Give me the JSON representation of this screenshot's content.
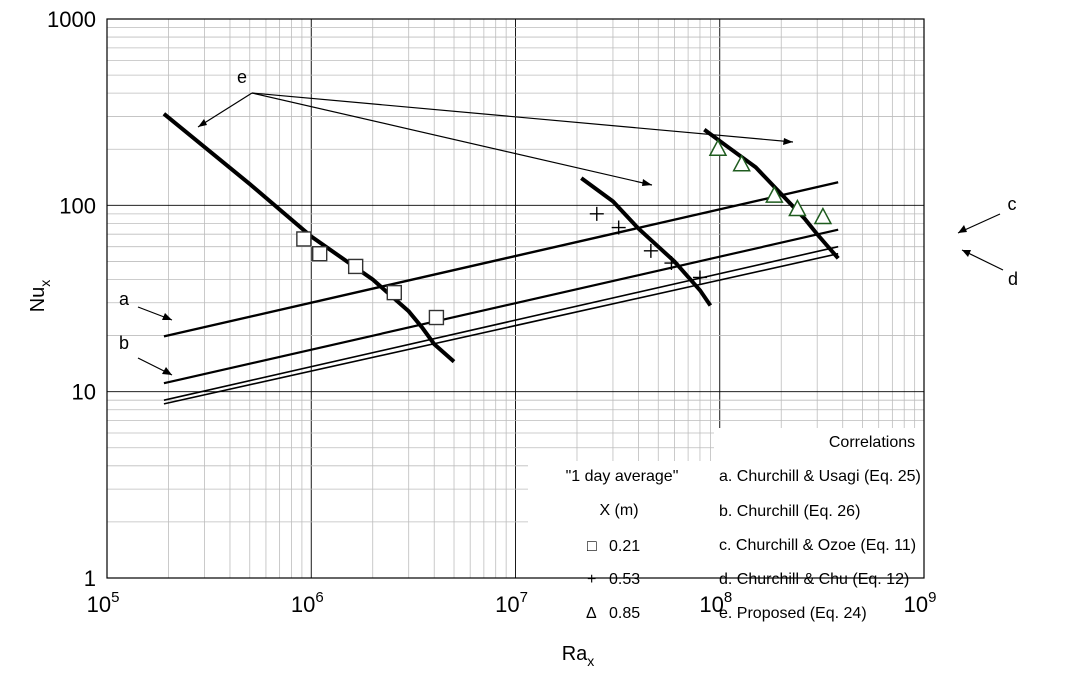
{
  "chart_data": {
    "type": "line",
    "xscale": "log",
    "yscale": "log",
    "xlim": [
      100000,
      1000000000
    ],
    "ylim": [
      1,
      1000
    ],
    "xlabel": {
      "base": "Ra",
      "sub": "x"
    },
    "ylabel": {
      "base": "Nu",
      "sub": "x"
    },
    "x_ticks": [
      {
        "base": "10",
        "exp": "5",
        "value": 100000
      },
      {
        "base": "10",
        "exp": "6",
        "value": 1000000
      },
      {
        "base": "10",
        "exp": "7",
        "value": 10000000
      },
      {
        "base": "10",
        "exp": "8",
        "value": 100000000
      },
      {
        "base": "10",
        "exp": "9",
        "value": 1000000000
      }
    ],
    "y_ticks": [
      {
        "label": "1",
        "value": 1
      },
      {
        "label": "10",
        "value": 10
      },
      {
        "label": "100",
        "value": 100
      },
      {
        "label": "1000",
        "value": 1000
      }
    ],
    "grid": "major and minor",
    "correlations": [
      {
        "name": "a. Churchill & Usagi (Eq. 25)",
        "letter": "a",
        "points": [
          [
            190000,
            19.8
          ],
          [
            380000000,
            133
          ]
        ]
      },
      {
        "name": "b. Churchill (Eq. 26)",
        "letter": "b",
        "points": [
          [
            190000,
            11.1
          ],
          [
            380000000,
            74
          ]
        ]
      },
      {
        "name": "c. Churchill & Ozoe (Eq. 11)",
        "letter": "c",
        "points": [
          [
            190000,
            9.0
          ],
          [
            380000000,
            60
          ]
        ]
      },
      {
        "name": "d. Churchill & Chu (Eq. 12)",
        "letter": "d",
        "points": [
          [
            190000,
            8.6
          ],
          [
            380000000,
            55
          ]
        ]
      }
    ],
    "proposed": {
      "name": "e. Proposed (Eq. 24)",
      "letter": "e",
      "segments": [
        [
          [
            190000,
            310
          ],
          [
            500000,
            130
          ],
          [
            1000000,
            68
          ],
          [
            2000000,
            40
          ],
          [
            3000000,
            27
          ],
          [
            3500000,
            22
          ],
          [
            4000000,
            18
          ],
          [
            5000000,
            14.5
          ]
        ],
        [
          [
            21000000,
            140
          ],
          [
            30000000,
            105
          ],
          [
            40000000,
            75
          ],
          [
            50000000,
            60
          ],
          [
            60000000,
            50
          ],
          [
            80000000,
            35
          ],
          [
            90000000,
            29
          ]
        ],
        [
          [
            84000000,
            255
          ],
          [
            110000000,
            205
          ],
          [
            150000000,
            160
          ],
          [
            200000000,
            115
          ],
          [
            260000000,
            85
          ],
          [
            300000000,
            70
          ],
          [
            330000000,
            62
          ],
          [
            380000000,
            52
          ]
        ]
      ]
    },
    "measured": {
      "legend_title": "\"1 day average\"",
      "legend_subtitle": "X (m)",
      "series": [
        {
          "symbol": "□",
          "label": "0.21",
          "marker": "square",
          "color": "#000000",
          "points": [
            [
              920000,
              66
            ],
            [
              1100000,
              55
            ],
            [
              1650000,
              47
            ],
            [
              2550000,
              34
            ],
            [
              4100000,
              25
            ]
          ]
        },
        {
          "symbol": "+",
          "label": "0.53",
          "marker": "plus",
          "color": "#000000",
          "points": [
            [
              25000000,
              90
            ],
            [
              32000000,
              76
            ],
            [
              46000000,
              57
            ],
            [
              58000000,
              49
            ],
            [
              80000000,
              41
            ]
          ]
        },
        {
          "symbol": "Δ",
          "label": "0.85",
          "marker": "triangle",
          "color": "#1f5c1f",
          "points": [
            [
              98000000,
              200
            ],
            [
              128000000,
              165
            ],
            [
              185000000,
              112
            ],
            [
              240000000,
              95
            ],
            [
              320000000,
              86
            ]
          ]
        }
      ]
    },
    "correlations_legend_title": "Correlations"
  }
}
